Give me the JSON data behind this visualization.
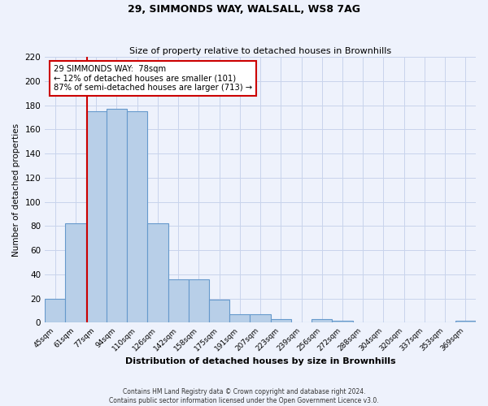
{
  "title": "29, SIMMONDS WAY, WALSALL, WS8 7AG",
  "subtitle": "Size of property relative to detached houses in Brownhills",
  "xlabel": "Distribution of detached houses by size in Brownhills",
  "ylabel": "Number of detached properties",
  "bin_labels": [
    "45sqm",
    "61sqm",
    "77sqm",
    "94sqm",
    "110sqm",
    "126sqm",
    "142sqm",
    "158sqm",
    "175sqm",
    "191sqm",
    "207sqm",
    "223sqm",
    "239sqm",
    "256sqm",
    "272sqm",
    "288sqm",
    "304sqm",
    "320sqm",
    "337sqm",
    "353sqm",
    "369sqm"
  ],
  "bar_values": [
    20,
    82,
    175,
    177,
    175,
    82,
    36,
    36,
    19,
    7,
    7,
    3,
    0,
    3,
    2,
    0,
    0,
    0,
    0,
    0,
    2
  ],
  "bar_color": "#b8cfe8",
  "bar_edge_color": "#6699cc",
  "property_line_label": "29 SIMMONDS WAY:  78sqm",
  "annotation_line1": "← 12% of detached houses are smaller (101)",
  "annotation_line2": "87% of semi-detached houses are larger (713) →",
  "annotation_box_color": "#ffffff",
  "annotation_box_edge_color": "#cc0000",
  "line_color": "#cc0000",
  "ylim": [
    0,
    220
  ],
  "yticks": [
    0,
    20,
    40,
    60,
    80,
    100,
    120,
    140,
    160,
    180,
    200,
    220
  ],
  "footer1": "Contains HM Land Registry data © Crown copyright and database right 2024.",
  "footer2": "Contains public sector information licensed under the Open Government Licence v3.0.",
  "bg_color": "#eef2fc",
  "grid_color": "#c8d4ec"
}
